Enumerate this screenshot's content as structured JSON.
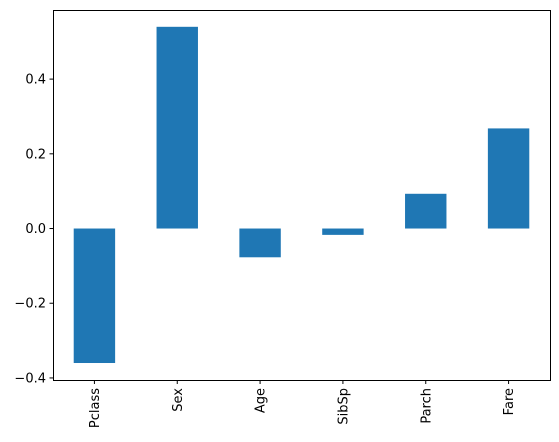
{
  "chart_data": {
    "type": "bar",
    "categories": [
      "Pclass",
      "Sex",
      "Age",
      "SibSp",
      "Parch",
      "Fare"
    ],
    "values": [
      -0.36,
      0.54,
      -0.077,
      -0.017,
      0.093,
      0.268
    ],
    "yticks": [
      -0.4,
      -0.2,
      0.0,
      0.2,
      0.4
    ],
    "ytick_labels": [
      "−0.4",
      "−0.2",
      "0.0",
      "0.2",
      "0.4"
    ],
    "ylim": [
      -0.4055,
      0.585
    ],
    "title": "",
    "xlabel": "",
    "ylabel": "",
    "grid": false,
    "bar_color": "#1f77b4"
  }
}
